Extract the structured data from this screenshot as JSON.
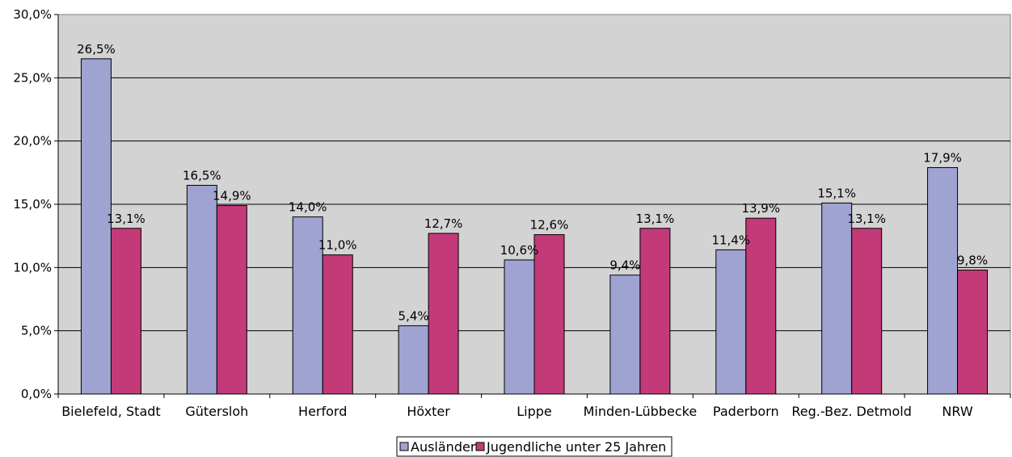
{
  "chart_data": {
    "type": "bar",
    "categories": [
      "Bielefeld, Stadt",
      "Gütersloh",
      "Herford",
      "Höxter",
      "Lippe",
      "Minden-Lübbecke",
      "Paderborn",
      "Reg.-Bez. Detmold",
      "NRW"
    ],
    "series": [
      {
        "name": "Ausländer",
        "values": [
          26.5,
          16.5,
          14.0,
          5.4,
          10.6,
          9.4,
          11.4,
          15.1,
          17.9
        ],
        "labels": [
          "26,5%",
          "16,5%",
          "14,0%",
          "5,4%",
          "10,6%",
          "9,4%",
          "11,4%",
          "15,1%",
          "17,9%"
        ],
        "color": "#9fa3d2"
      },
      {
        "name": "Jugendliche unter 25 Jahren",
        "values": [
          13.1,
          14.9,
          11.0,
          12.7,
          12.6,
          13.1,
          13.9,
          13.1,
          9.8
        ],
        "labels": [
          "13,1%",
          "14,9%",
          "11,0%",
          "12,7%",
          "12,6%",
          "13,1%",
          "13,9%",
          "13,1%",
          "9,8%"
        ],
        "color": "#c23a78"
      }
    ],
    "ylim": [
      0,
      30
    ],
    "yticks": [
      0,
      5,
      10,
      15,
      20,
      25,
      30
    ],
    "ytick_labels": [
      "0,0%",
      "5,0%",
      "10,0%",
      "15,0%",
      "20,0%",
      "25,0%",
      "30,0%"
    ],
    "title": "",
    "xlabel": "",
    "ylabel": "",
    "grid": true,
    "plot_background": "#d3d3d3",
    "legend_position": "bottom-center"
  }
}
